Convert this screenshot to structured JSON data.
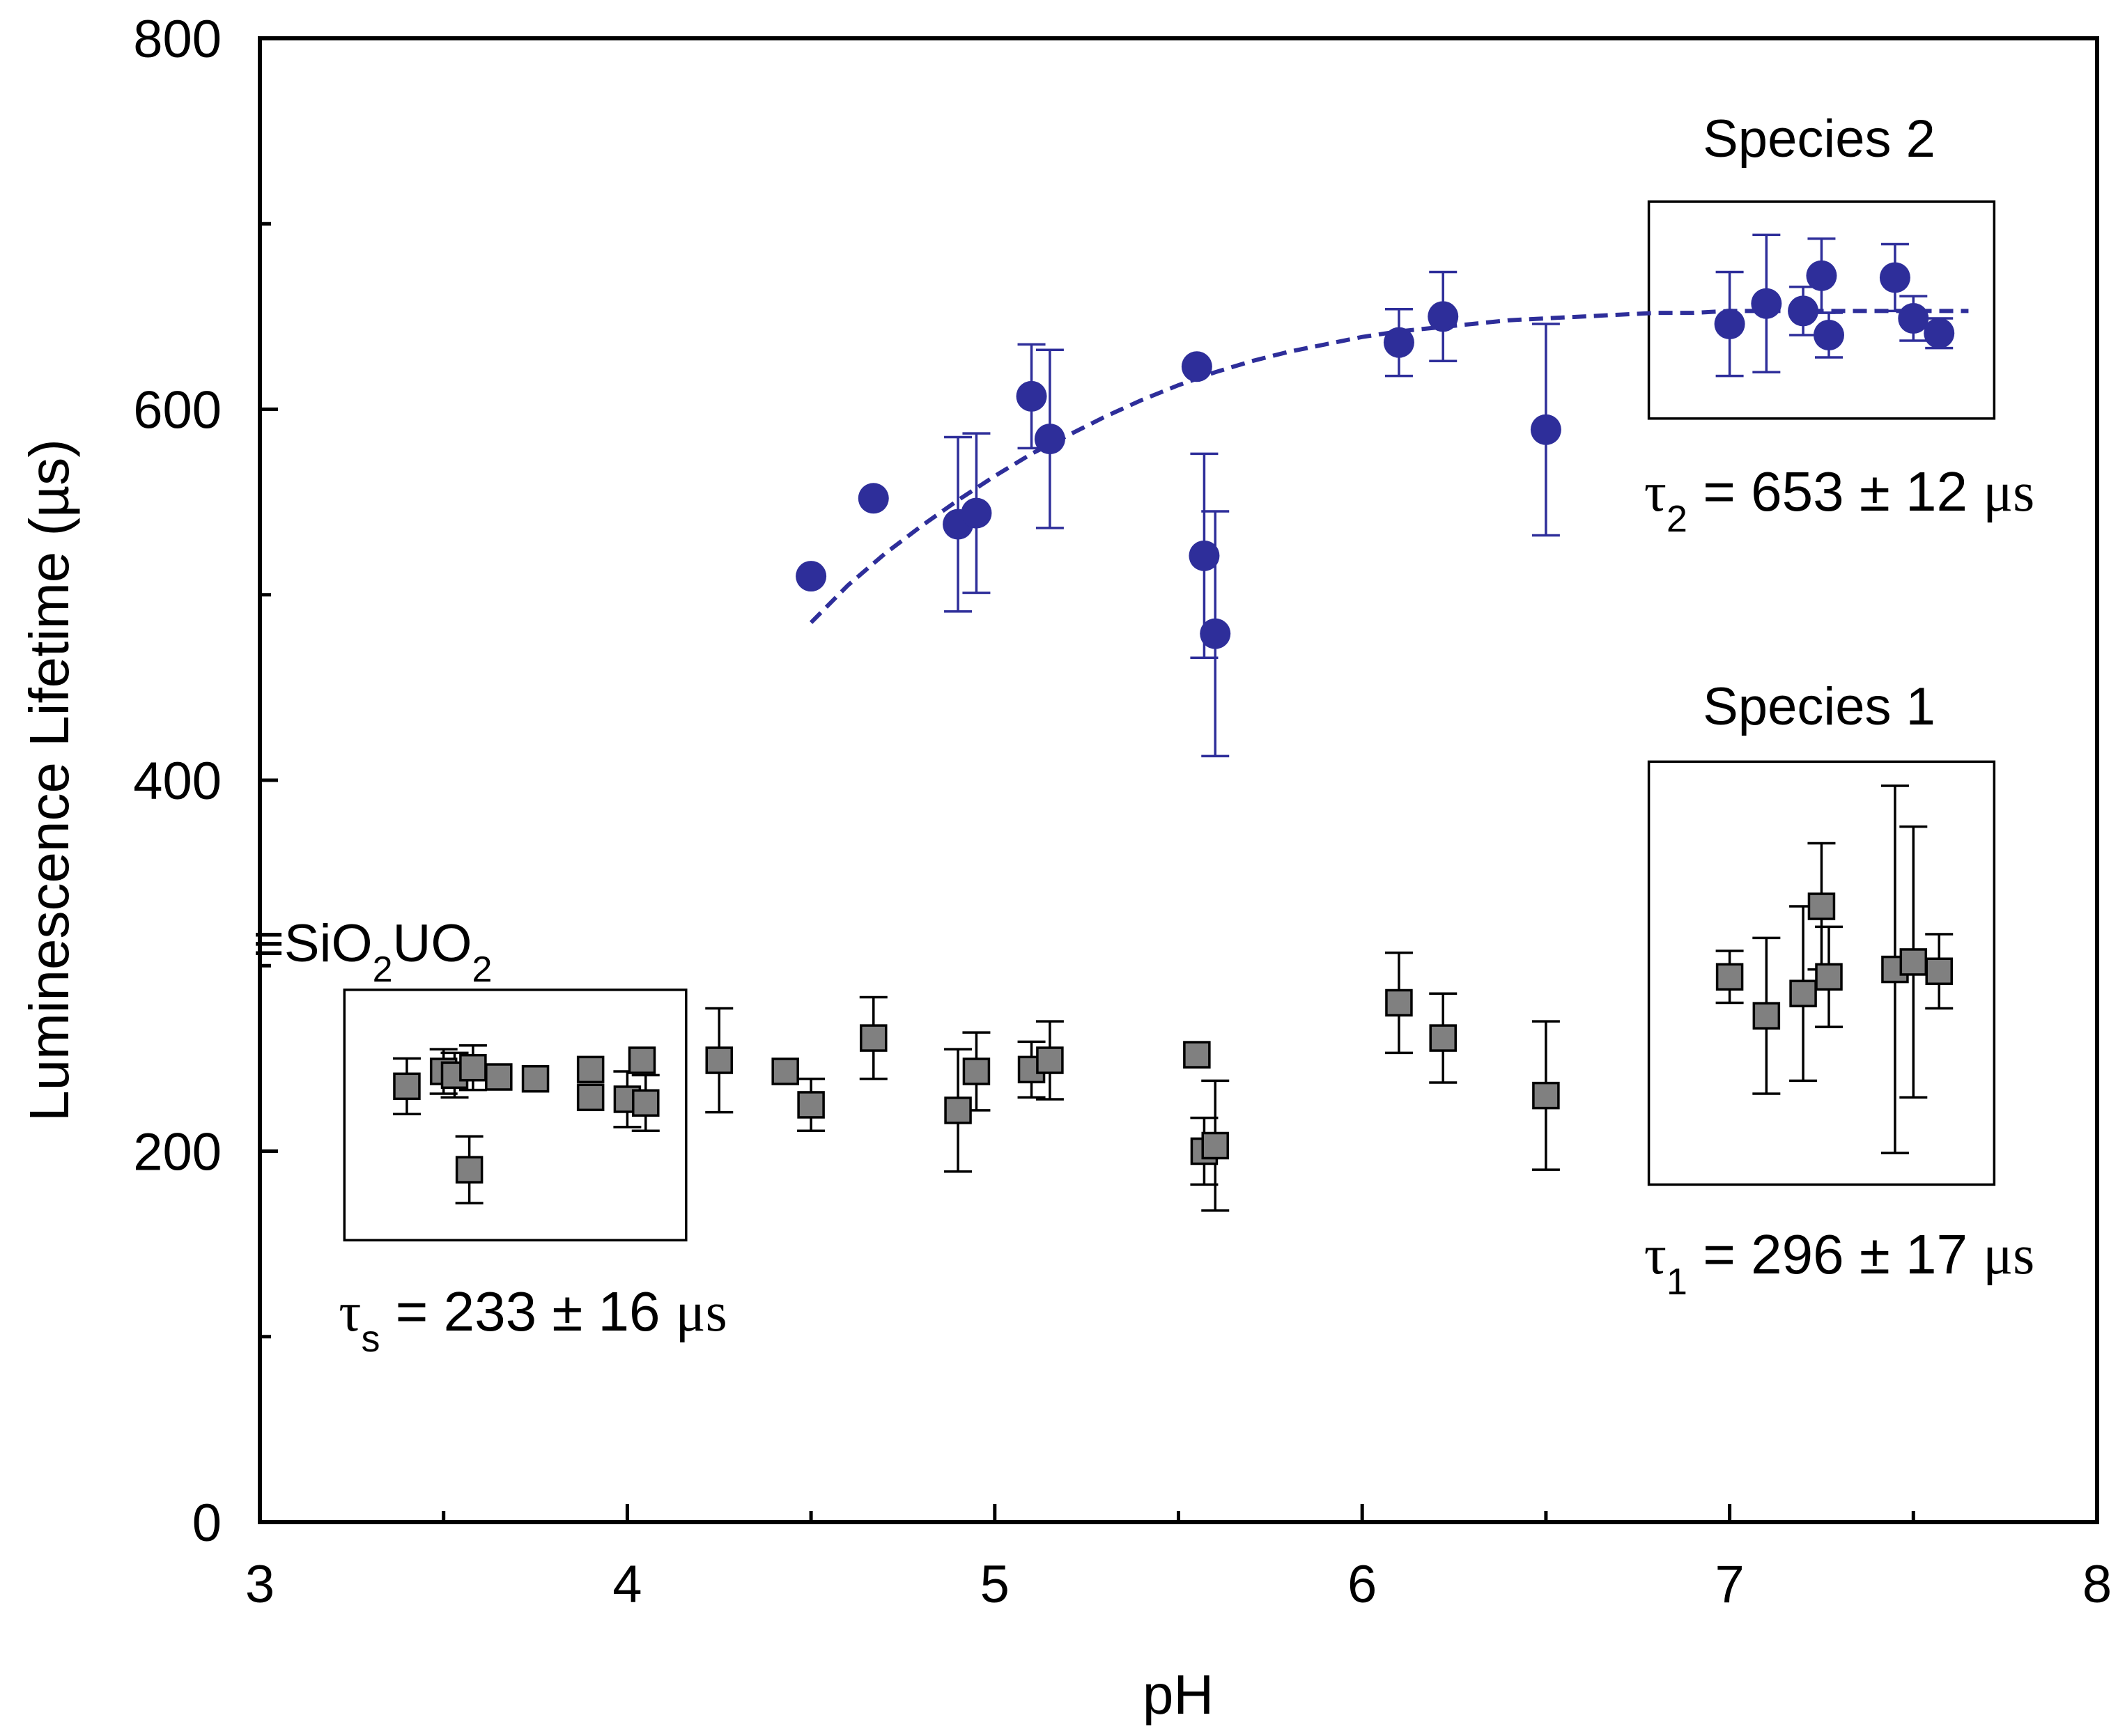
{
  "chart_data": {
    "type": "scatter",
    "title": "",
    "xlabel": "pH",
    "ylabel": "Luminescence Lifetime (µs)",
    "xlim": [
      3,
      8
    ],
    "ylim": [
      0,
      800
    ],
    "x_ticks": [
      3,
      4,
      5,
      6,
      7,
      8
    ],
    "y_ticks": [
      0,
      200,
      400,
      600,
      800
    ],
    "x_minor_ticks": [
      3.5,
      4.5,
      5.5,
      6.5,
      7.5
    ],
    "y_minor_ticks": [
      100,
      300,
      500,
      700
    ],
    "colors": {
      "species2": "#2e2e9a",
      "species1": "#808080",
      "outline": "#000000"
    },
    "series": [
      {
        "name": "Species 2",
        "marker": "circle",
        "points": [
          {
            "x": 4.5,
            "y": 510,
            "err": 0
          },
          {
            "x": 4.67,
            "y": 552,
            "err": 0
          },
          {
            "x": 4.9,
            "y": 538,
            "err": 47
          },
          {
            "x": 4.95,
            "y": 544,
            "err": 43
          },
          {
            "x": 5.1,
            "y": 607,
            "err": 28
          },
          {
            "x": 5.15,
            "y": 584,
            "err": 48
          },
          {
            "x": 5.55,
            "y": 623,
            "err": 0
          },
          {
            "x": 5.57,
            "y": 521,
            "err": 55
          },
          {
            "x": 5.6,
            "y": 479,
            "err": 66
          },
          {
            "x": 6.1,
            "y": 636,
            "err": 18
          },
          {
            "x": 6.22,
            "y": 650,
            "err": 24
          },
          {
            "x": 6.5,
            "y": 589,
            "err": 57
          },
          {
            "x": 7.0,
            "y": 646,
            "err": 28
          },
          {
            "x": 7.1,
            "y": 657,
            "err": 37
          },
          {
            "x": 7.2,
            "y": 653,
            "err": 13
          },
          {
            "x": 7.25,
            "y": 672,
            "err": 20
          },
          {
            "x": 7.27,
            "y": 640,
            "err": 12
          },
          {
            "x": 7.45,
            "y": 671,
            "err": 18
          },
          {
            "x": 7.5,
            "y": 649,
            "err": 12
          },
          {
            "x": 7.57,
            "y": 641,
            "err": 8
          }
        ]
      },
      {
        "name": "Species 1",
        "marker": "square",
        "points": [
          {
            "x": 3.4,
            "y": 235,
            "err": 15
          },
          {
            "x": 3.5,
            "y": 243,
            "err": 12
          },
          {
            "x": 3.53,
            "y": 241,
            "err": 12
          },
          {
            "x": 3.57,
            "y": 190,
            "err": 18
          },
          {
            "x": 3.58,
            "y": 245,
            "err": 12
          },
          {
            "x": 3.65,
            "y": 240,
            "err": 0
          },
          {
            "x": 3.75,
            "y": 239,
            "err": 0
          },
          {
            "x": 3.9,
            "y": 244,
            "err": 0
          },
          {
            "x": 3.9,
            "y": 229,
            "err": 0
          },
          {
            "x": 4.0,
            "y": 228,
            "err": 15
          },
          {
            "x": 4.04,
            "y": 249,
            "err": 0
          },
          {
            "x": 4.05,
            "y": 226,
            "err": 15
          },
          {
            "x": 4.25,
            "y": 249,
            "err": 28
          },
          {
            "x": 4.43,
            "y": 243,
            "err": 0
          },
          {
            "x": 4.5,
            "y": 225,
            "err": 14
          },
          {
            "x": 4.67,
            "y": 261,
            "err": 22
          },
          {
            "x": 4.9,
            "y": 222,
            "err": 33
          },
          {
            "x": 4.95,
            "y": 243,
            "err": 21
          },
          {
            "x": 5.1,
            "y": 244,
            "err": 15
          },
          {
            "x": 5.15,
            "y": 249,
            "err": 21
          },
          {
            "x": 5.55,
            "y": 252,
            "err": 0
          },
          {
            "x": 5.57,
            "y": 200,
            "err": 18
          },
          {
            "x": 5.6,
            "y": 203,
            "err": 35
          },
          {
            "x": 6.1,
            "y": 280,
            "err": 27
          },
          {
            "x": 6.22,
            "y": 261,
            "err": 24
          },
          {
            "x": 6.5,
            "y": 230,
            "err": 40
          },
          {
            "x": 7.0,
            "y": 294,
            "err": 14
          },
          {
            "x": 7.1,
            "y": 273,
            "err": 42
          },
          {
            "x": 7.2,
            "y": 285,
            "err": 47
          },
          {
            "x": 7.25,
            "y": 332,
            "err": 34
          },
          {
            "x": 7.27,
            "y": 294,
            "err": 27
          },
          {
            "x": 7.45,
            "y": 298,
            "err": 99
          },
          {
            "x": 7.5,
            "y": 302,
            "err": 73
          },
          {
            "x": 7.57,
            "y": 297,
            "err": 20
          }
        ]
      },
      {
        "name": "Species 2 fit",
        "type": "line",
        "style": "dashed",
        "points": [
          {
            "x": 4.5,
            "y": 485
          },
          {
            "x": 4.6,
            "y": 505
          },
          {
            "x": 4.7,
            "y": 522
          },
          {
            "x": 4.8,
            "y": 537
          },
          {
            "x": 4.9,
            "y": 551
          },
          {
            "x": 5.0,
            "y": 564
          },
          {
            "x": 5.1,
            "y": 576
          },
          {
            "x": 5.2,
            "y": 586
          },
          {
            "x": 5.3,
            "y": 596
          },
          {
            "x": 5.4,
            "y": 605
          },
          {
            "x": 5.5,
            "y": 613
          },
          {
            "x": 5.6,
            "y": 620
          },
          {
            "x": 5.7,
            "y": 626
          },
          {
            "x": 5.8,
            "y": 631
          },
          {
            "x": 5.9,
            "y": 635
          },
          {
            "x": 6.0,
            "y": 639
          },
          {
            "x": 6.1,
            "y": 642
          },
          {
            "x": 6.2,
            "y": 644
          },
          {
            "x": 6.3,
            "y": 646
          },
          {
            "x": 6.4,
            "y": 648
          },
          {
            "x": 6.5,
            "y": 649
          },
          {
            "x": 6.6,
            "y": 650
          },
          {
            "x": 6.7,
            "y": 651
          },
          {
            "x": 6.8,
            "y": 652
          },
          {
            "x": 6.9,
            "y": 652
          },
          {
            "x": 7.0,
            "y": 653
          },
          {
            "x": 7.2,
            "y": 653
          },
          {
            "x": 7.4,
            "y": 653
          },
          {
            "x": 7.6,
            "y": 653
          },
          {
            "x": 7.65,
            "y": 653
          }
        ]
      }
    ],
    "annotation_boxes": [
      {
        "name": "species-2-box",
        "x": [
          6.78,
          7.72
        ],
        "y": [
          595,
          712
        ]
      },
      {
        "name": "species-1-box",
        "x": [
          6.78,
          7.72
        ],
        "y": [
          182,
          410
        ]
      },
      {
        "name": "surface-box",
        "x": [
          3.23,
          4.16
        ],
        "y": [
          152,
          287
        ]
      }
    ],
    "annotations": {
      "species2_label": "Species 2",
      "species1_label": "Species 1",
      "surface_label": {
        "prefix": "≡SiO",
        "sub1": "2",
        "mid": "UO",
        "sub2": "2"
      },
      "tau2": {
        "symbol": "τ",
        "sub": "2",
        "text": " = 653 ± 12 ",
        "unit": "μs"
      },
      "tau1": {
        "symbol": "τ",
        "sub": "1",
        "text": " = 296 ± 17 ",
        "unit": "μs"
      },
      "taus": {
        "symbol": "τ",
        "sub": "s",
        "text": " = 233 ± 16 ",
        "unit": "μs"
      }
    }
  }
}
